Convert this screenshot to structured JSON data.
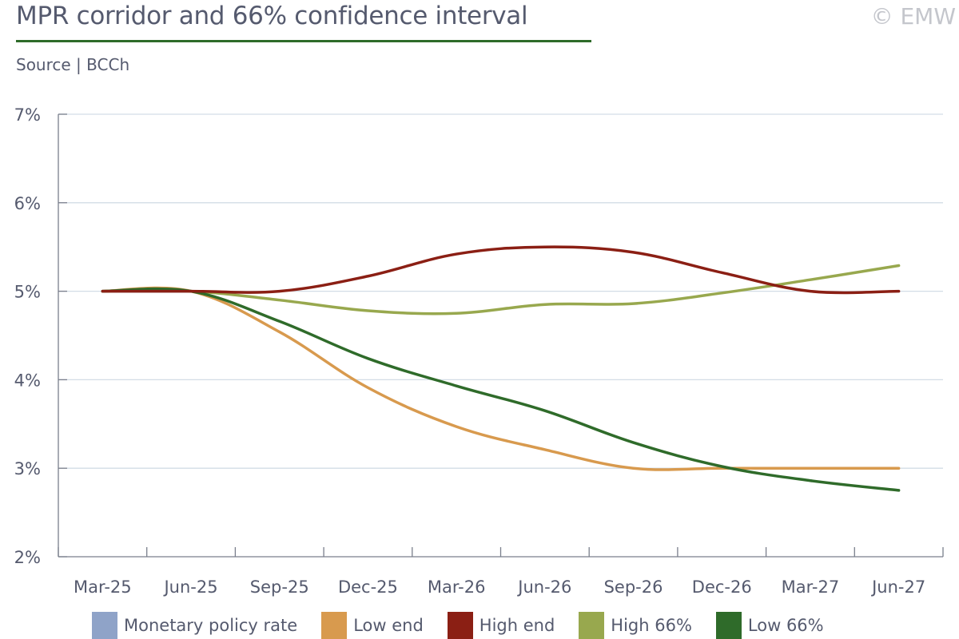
{
  "header": {
    "title": "MPR corridor and 66% confidence interval",
    "source": "Source | BCCh",
    "copyright": "© EMW"
  },
  "chart_data": {
    "type": "line",
    "title": "MPR corridor and 66% confidence interval",
    "xlabel": "",
    "ylabel": "",
    "categories": [
      "Mar-25",
      "Jun-25",
      "Sep-25",
      "Dec-25",
      "Mar-26",
      "Jun-26",
      "Sep-26",
      "Dec-26",
      "Mar-27",
      "Jun-27"
    ],
    "y_ticks": [
      "2%",
      "3%",
      "4%",
      "5%",
      "6%",
      "7%"
    ],
    "ylim": [
      2,
      7
    ],
    "grid": "horizontal",
    "legend_position": "bottom",
    "series": [
      {
        "name": "Monetary policy rate",
        "color": "#8fa3c8",
        "values": [
          5.0,
          5.0,
          null,
          null,
          null,
          null,
          null,
          null,
          null,
          null
        ]
      },
      {
        "name": "Low end",
        "color": "#d89a4e",
        "values": [
          5.0,
          5.0,
          4.54,
          3.91,
          3.47,
          3.21,
          3.0,
          3.0,
          3.0,
          3.0
        ]
      },
      {
        "name": "High end",
        "color": "#8b1f14",
        "values": [
          5.0,
          5.0,
          5.0,
          5.17,
          5.42,
          5.5,
          5.44,
          5.21,
          5.0,
          5.0
        ]
      },
      {
        "name": "High 66%",
        "color": "#98a84e",
        "values": [
          5.0,
          5.0,
          4.9,
          4.78,
          4.75,
          4.85,
          4.86,
          4.98,
          5.13,
          5.29
        ]
      },
      {
        "name": "Low 66%",
        "color": "#2f6b2a",
        "values": [
          5.0,
          5.0,
          4.66,
          4.24,
          3.93,
          3.65,
          3.29,
          3.02,
          2.86,
          2.75
        ]
      }
    ]
  }
}
